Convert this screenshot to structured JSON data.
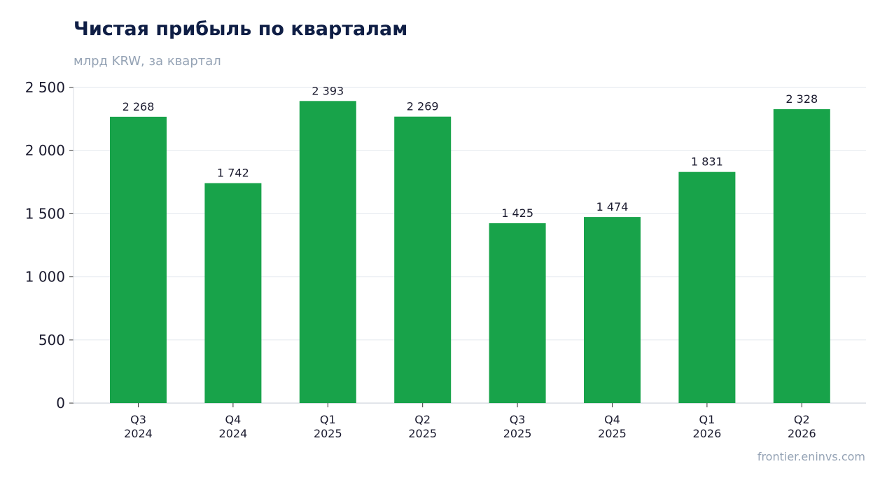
{
  "chart_data": {
    "type": "bar",
    "title": "Чистая прибыль по кварталам",
    "subtitle": "млрд KRW, за квартал",
    "categories": [
      [
        "Q3",
        "2024"
      ],
      [
        "Q4",
        "2024"
      ],
      [
        "Q1",
        "2025"
      ],
      [
        "Q2",
        "2025"
      ],
      [
        "Q3",
        "2025"
      ],
      [
        "Q4",
        "2025"
      ],
      [
        "Q1",
        "2026"
      ],
      [
        "Q2",
        "2026"
      ]
    ],
    "values": [
      2268,
      1742,
      2393,
      2269,
      1425,
      1474,
      1831,
      2328
    ],
    "value_labels": [
      "2 268",
      "1 742",
      "2 393",
      "2 269",
      "1 425",
      "1 474",
      "1 831",
      "2 328"
    ],
    "y_ticks": [
      0,
      500,
      1000,
      1500,
      2000,
      2500
    ],
    "y_tick_labels": [
      "0",
      "500",
      "1 000",
      "1 500",
      "2 000",
      "2 500"
    ],
    "ylim": [
      0,
      2500
    ],
    "grid": true,
    "bar_color": "#18a34a"
  },
  "footer": {
    "source": "frontier.eninvs.com"
  }
}
